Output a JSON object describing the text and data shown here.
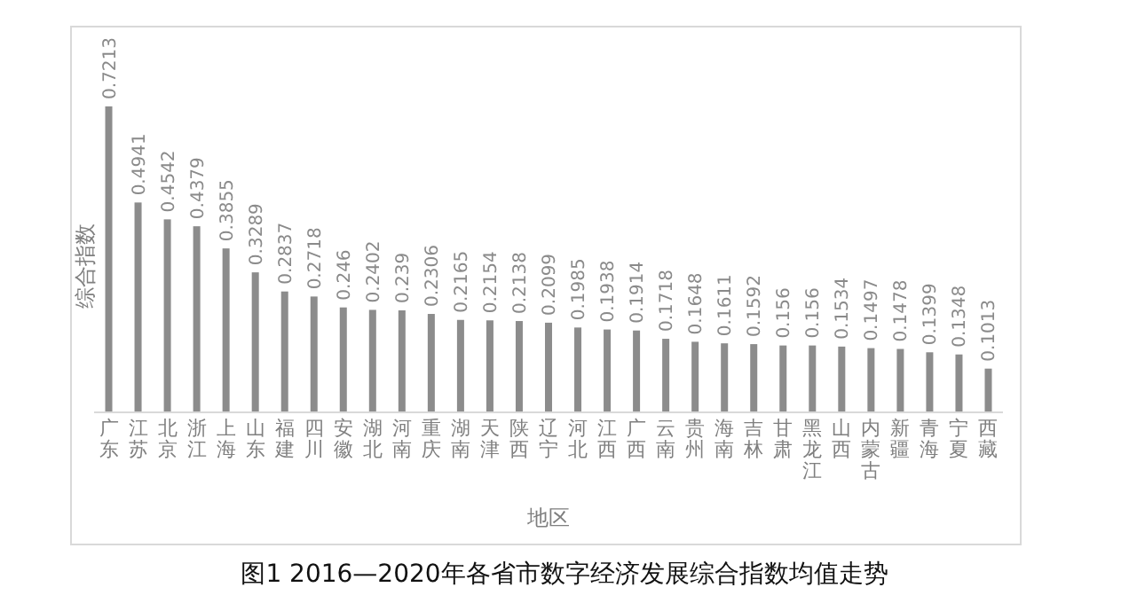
{
  "chart_data": {
    "type": "bar",
    "title": "图1  2016—2020年各省市数字经济发展综合指数均值走势",
    "xlabel": "地区",
    "ylabel": "综合指数",
    "categories": [
      "广东",
      "江苏",
      "北京",
      "浙江",
      "上海",
      "山东",
      "福建",
      "四川",
      "安徽",
      "湖北",
      "河南",
      "重庆",
      "湖南",
      "天津",
      "陕西",
      "辽宁",
      "河北",
      "江西",
      "广西",
      "云南",
      "贵州",
      "海南",
      "吉林",
      "甘肃",
      "黑龙江",
      "山西",
      "内蒙古",
      "新疆",
      "青海",
      "宁夏",
      "西藏"
    ],
    "values": [
      0.7213,
      0.4941,
      0.4542,
      0.4379,
      0.3855,
      0.3289,
      0.2837,
      0.2718,
      0.246,
      0.2402,
      0.239,
      0.2306,
      0.2165,
      0.2154,
      0.2138,
      0.2099,
      0.1985,
      0.1938,
      0.1914,
      0.1718,
      0.1648,
      0.1611,
      0.1592,
      0.156,
      0.156,
      0.1534,
      0.1497,
      0.1478,
      0.1399,
      0.1348,
      0.1013
    ],
    "color": "#8c8c8c",
    "data_labels": true
  }
}
